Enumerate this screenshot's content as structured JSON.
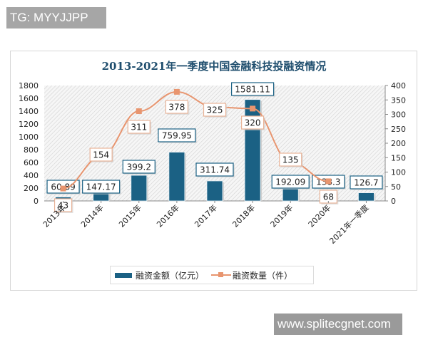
{
  "watermarks": {
    "top": "TG: MYYJJPP",
    "bottom": "www.splitecgnet.com"
  },
  "chart_data": {
    "type": "bar+line",
    "title": "2013-2021年一季度中国金融科技投融资情况",
    "categories": [
      "2013年",
      "2014年",
      "2015年",
      "2016年",
      "2017年",
      "2018年",
      "2019年",
      "2020年",
      "2021年一季度"
    ],
    "series": [
      {
        "name": "融资金额（亿元）",
        "type": "bar",
        "axis": "left",
        "color": "#1b6184",
        "values": [
          60.89,
          147.17,
          399.2,
          759.95,
          311.74,
          1581.11,
          192.09,
          138.3,
          126.7
        ],
        "labels": [
          "60.89",
          "147.17",
          "399.2",
          "759.95",
          "311.74",
          "1581.11",
          "192.09",
          "138.3",
          "126.7"
        ]
      },
      {
        "name": "融资数量（件）",
        "type": "line",
        "axis": "right",
        "color": "#e8956f",
        "values": [
          43,
          154,
          311,
          378,
          325,
          320,
          135,
          68,
          null
        ],
        "labels": [
          "43",
          "154",
          "311",
          "378",
          "325",
          "320",
          "135",
          "68",
          ""
        ]
      }
    ],
    "y_left": {
      "min": 0,
      "max": 1800,
      "ticks": [
        "0",
        "200",
        "400",
        "600",
        "800",
        "1000",
        "1200",
        "1400",
        "1600",
        "1800"
      ]
    },
    "y_right": {
      "min": 0,
      "max": 400,
      "ticks": [
        "0",
        "50",
        "100",
        "150",
        "200",
        "250",
        "300",
        "350",
        "400"
      ]
    },
    "legend": {
      "position": "bottom",
      "items": [
        "融资金额（亿元）",
        "融资数量（件）"
      ]
    },
    "grid": false,
    "background": "diagonal-hatch"
  }
}
